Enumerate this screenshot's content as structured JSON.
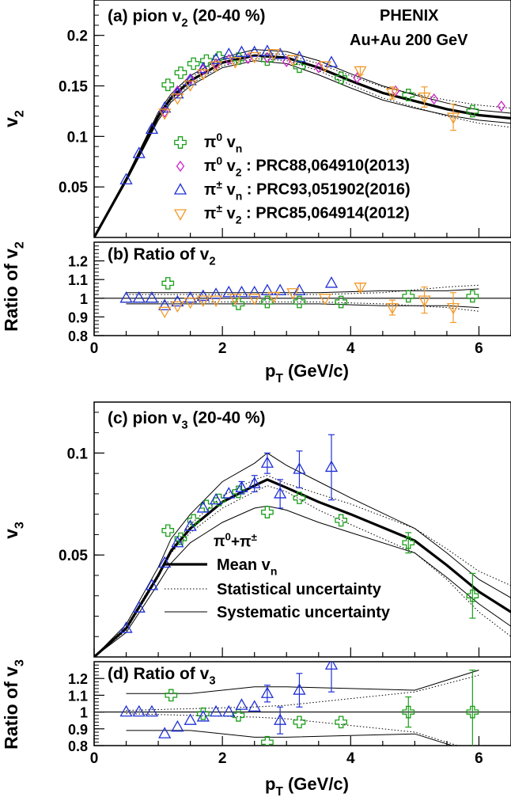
{
  "figure": {
    "experiment": "PHENIX",
    "system": "Au+Au 200 GeV"
  },
  "colors": {
    "pi0_vn": "#1a9f1a",
    "pi0_v2": "#cc22cc",
    "pich_vn": "#1f2fd6",
    "pich_v2": "#f39a2a",
    "lines": "#000000"
  },
  "icons": {
    "pi0_vn": "open-cross",
    "pi0_v2": "open-diamond",
    "pich_vn": "open-triangle-up",
    "pich_v2": "open-triangle-down"
  },
  "chart_data": [
    {
      "id": "a",
      "type": "scatter",
      "panel_label": "(a) pion v",
      "panel_label_sub": "2",
      "panel_label_tail": " (20-40 %)",
      "ylabel": "v",
      "ylabel_sub": "2",
      "xlim": [
        0,
        6.5
      ],
      "ylim": [
        0,
        0.235
      ],
      "yticks": [
        0.05,
        0.1,
        0.15,
        0.2
      ],
      "ytick_labels": [
        "0.05",
        "0.1",
        "0.15",
        "0.2"
      ],
      "legend": [
        {
          "key": "pi0_vn",
          "text": "π",
          "sup": "0",
          "mid": " v",
          "sub": "n",
          "tail": ""
        },
        {
          "key": "pi0_v2",
          "text": "π",
          "sup": "0",
          "mid": " v",
          "sub": "2",
          "tail": " : PRC88,064910(2013)"
        },
        {
          "key": "pich_vn",
          "text": "π",
          "sup": "±",
          "mid": " v",
          "sub": "n",
          "tail": " : PRC93,051902(2016)"
        },
        {
          "key": "pich_v2",
          "text": "π",
          "sup": "±",
          "mid": " v",
          "sub": "2",
          "tail": " : PRC85,064914(2012)"
        }
      ],
      "series": [
        {
          "name": "π0 vn",
          "key": "pi0_vn",
          "x": [
            1.15,
            1.35,
            1.55,
            1.75,
            1.95,
            2.25,
            2.7,
            3.2,
            3.85,
            4.9,
            5.9
          ],
          "y": [
            0.151,
            0.163,
            0.172,
            0.175,
            0.178,
            0.177,
            0.176,
            0.169,
            0.158,
            0.141,
            0.125
          ]
        },
        {
          "name": "π0 v2 : PRC88,064910(2013)",
          "key": "pi0_v2",
          "x": [
            1.1,
            1.3,
            1.5,
            1.7,
            1.9,
            2.1,
            2.4,
            2.7,
            3.0,
            3.5,
            4.1,
            4.7,
            5.3,
            6.35
          ],
          "y": [
            0.124,
            0.145,
            0.157,
            0.166,
            0.172,
            0.176,
            0.177,
            0.178,
            0.174,
            0.168,
            0.158,
            0.145,
            0.137,
            0.13
          ]
        },
        {
          "name": "π± vn : PRC93,051902(2016)",
          "key": "pich_vn",
          "x": [
            0.5,
            0.7,
            0.9,
            1.1,
            1.3,
            1.5,
            1.7,
            1.9,
            2.1,
            2.3,
            2.5,
            2.7,
            2.9,
            3.2,
            3.7
          ],
          "y": [
            0.057,
            0.083,
            0.107,
            0.128,
            0.142,
            0.155,
            0.167,
            0.176,
            0.181,
            0.183,
            0.183,
            0.184,
            0.181,
            0.178,
            0.173
          ]
        },
        {
          "name": "π± v2 : PRC85,064914(2012)",
          "key": "pich_v2",
          "x": [
            1.1,
            1.3,
            1.5,
            1.7,
            1.9,
            2.2,
            2.5,
            2.8,
            3.1,
            3.6,
            4.15,
            4.65,
            5.15,
            5.6
          ],
          "y": [
            0.123,
            0.138,
            0.151,
            0.162,
            0.17,
            0.174,
            0.179,
            0.182,
            0.176,
            0.17,
            0.165,
            0.143,
            0.139,
            0.119
          ],
          "yerr": [
            0,
            0,
            0,
            0,
            0,
            0,
            0,
            0,
            0,
            0,
            0.004,
            0.006,
            0.01,
            0.013
          ]
        }
      ],
      "lines": {
        "x": [
          0,
          0.5,
          1,
          1.2,
          1.5,
          2,
          2.5,
          3,
          3.5,
          4,
          4.5,
          5,
          5.5,
          6,
          6.5
        ],
        "mean": [
          0,
          0.057,
          0.12,
          0.138,
          0.155,
          0.173,
          0.18,
          0.178,
          0.168,
          0.155,
          0.143,
          0.135,
          0.127,
          0.121,
          0.118
        ],
        "stat_hi": [
          0,
          0.058,
          0.122,
          0.14,
          0.158,
          0.176,
          0.183,
          0.181,
          0.172,
          0.16,
          0.149,
          0.142,
          0.136,
          0.131,
          0.128
        ],
        "stat_lo": [
          0,
          0.056,
          0.118,
          0.136,
          0.152,
          0.17,
          0.177,
          0.175,
          0.165,
          0.151,
          0.138,
          0.129,
          0.12,
          0.113,
          0.109
        ],
        "sys_hi": [
          0,
          0.059,
          0.124,
          0.142,
          0.16,
          0.178,
          0.186,
          0.184,
          0.175,
          0.162,
          0.15,
          0.141,
          0.133,
          0.126,
          0.123
        ],
        "sys_lo": [
          0,
          0.055,
          0.116,
          0.134,
          0.15,
          0.168,
          0.175,
          0.172,
          0.161,
          0.148,
          0.136,
          0.128,
          0.121,
          0.116,
          0.113
        ]
      }
    },
    {
      "id": "b",
      "type": "scatter",
      "panel_label": "(b) Ratio of v",
      "panel_label_sub": "2",
      "ylabel": "Ratio of v",
      "ylabel_sub": "2",
      "xlim": [
        0,
        6.5
      ],
      "ylim": [
        0.8,
        1.3
      ],
      "yticks": [
        0.8,
        0.9,
        1.0,
        1.1,
        1.2
      ],
      "ytick_labels": [
        "0.8",
        "0.9",
        "1",
        "1.1",
        "1.2"
      ],
      "xlabel": "p",
      "xlabel_sub": "T",
      "xlabel_tail": " (GeV/c)",
      "xticks": [
        0,
        2,
        4,
        6
      ],
      "xtick_labels": [
        "0",
        "2",
        "4",
        "6"
      ],
      "series": [
        {
          "name": "π0 vn",
          "key": "pi0_vn",
          "x": [
            1.15,
            2.25,
            2.7,
            3.2,
            3.85,
            4.9,
            5.9
          ],
          "y": [
            1.08,
            0.97,
            0.98,
            0.98,
            0.98,
            1.01,
            1.01
          ]
        },
        {
          "name": "π± vn",
          "key": "pich_vn",
          "x": [
            0.5,
            0.7,
            0.9,
            1.1,
            1.3,
            1.5,
            1.7,
            1.9,
            2.1,
            2.3,
            2.5,
            2.7,
            2.9,
            3.2,
            3.7
          ],
          "y": [
            1.0,
            1.0,
            1.0,
            0.96,
            0.98,
            1.0,
            1.01,
            1.02,
            1.03,
            1.03,
            1.03,
            1.04,
            1.04,
            1.04,
            1.08
          ]
        },
        {
          "name": "π± v2",
          "key": "pich_v2",
          "x": [
            1.1,
            1.3,
            1.5,
            1.7,
            1.9,
            2.2,
            2.5,
            2.8,
            3.1,
            3.6,
            4.15,
            4.65,
            5.15,
            5.6
          ],
          "y": [
            0.93,
            0.96,
            0.98,
            0.99,
            0.99,
            1.0,
            1.0,
            1.01,
            1.03,
            1.0,
            1.06,
            0.95,
            0.99,
            0.95
          ],
          "yerr": [
            0,
            0,
            0,
            0,
            0,
            0,
            0,
            0,
            0,
            0,
            0.02,
            0.04,
            0.07,
            0.08
          ]
        }
      ],
      "lines": {
        "x": [
          0.5,
          1.5,
          2.5,
          3.5,
          4.5,
          5.5,
          6
        ],
        "stat_hi": [
          1.02,
          1.02,
          1.02,
          1.02,
          1.03,
          1.06,
          1.07
        ],
        "stat_lo": [
          0.98,
          0.98,
          0.98,
          0.98,
          0.97,
          0.95,
          0.93
        ],
        "sys_hi": [
          1.03,
          1.03,
          1.03,
          1.03,
          1.04,
          1.04,
          1.05
        ],
        "sys_lo": [
          0.97,
          0.97,
          0.97,
          0.97,
          0.96,
          0.96,
          0.95
        ]
      }
    },
    {
      "id": "c",
      "type": "scatter",
      "panel_label": "(c) pion v",
      "panel_label_sub": "3",
      "panel_label_tail": " (20-40 %)",
      "ylabel": "v",
      "ylabel_sub": "3",
      "xlim": [
        0,
        6.5
      ],
      "ylim": [
        0,
        0.125
      ],
      "yticks": [
        0.05,
        0.1
      ],
      "ytick_labels": [
        "0.05",
        "0.1"
      ],
      "legend_title": "π",
      "legend_title_sup": "0",
      "legend_title_mid": "+π",
      "legend_title_sup2": "±",
      "legend": [
        {
          "key": "mean",
          "text": "Mean v",
          "sub": "n"
        },
        {
          "key": "stat",
          "text": "Statistical uncertainty"
        },
        {
          "key": "sys",
          "text": "Systematic uncertainty"
        }
      ],
      "series": [
        {
          "name": "π0 vn",
          "key": "pi0_vn",
          "x": [
            1.15,
            1.35,
            1.55,
            1.75,
            1.95,
            2.25,
            2.7,
            3.2,
            3.85,
            4.9,
            5.9
          ],
          "y": [
            0.062,
            0.058,
            0.067,
            0.074,
            0.077,
            0.081,
            0.071,
            0.078,
            0.067,
            0.056,
            0.03
          ],
          "yerr": [
            0,
            0,
            0,
            0,
            0,
            0,
            0,
            0,
            0,
            0.005,
            0.011
          ]
        },
        {
          "name": "π± vn",
          "key": "pich_vn",
          "x": [
            0.5,
            0.7,
            0.9,
            1.1,
            1.3,
            1.5,
            1.7,
            1.9,
            2.1,
            2.3,
            2.5,
            2.7,
            2.9,
            3.2,
            3.7
          ],
          "y": [
            0.014,
            0.024,
            0.035,
            0.046,
            0.056,
            0.064,
            0.073,
            0.077,
            0.08,
            0.083,
            0.085,
            0.095,
            0.08,
            0.092,
            0.093
          ],
          "yerr": [
            0,
            0,
            0,
            0,
            0,
            0,
            0,
            0,
            0,
            0.003,
            0.004,
            0.005,
            0.007,
            0.009,
            0.016
          ]
        }
      ],
      "lines": {
        "x": [
          0,
          0.5,
          1,
          1.2,
          1.5,
          2,
          2.5,
          2.7,
          3,
          3.5,
          4,
          5,
          5.5,
          6,
          6.5
        ],
        "mean": [
          0,
          0.014,
          0.04,
          0.052,
          0.063,
          0.076,
          0.084,
          0.087,
          0.083,
          0.076,
          0.07,
          0.057,
          0.045,
          0.032,
          0.022
        ],
        "stat_hi": [
          0,
          0.015,
          0.041,
          0.053,
          0.065,
          0.079,
          0.087,
          0.089,
          0.085,
          0.08,
          0.075,
          0.063,
          0.053,
          0.042,
          0.035
        ],
        "stat_lo": [
          0,
          0.013,
          0.039,
          0.051,
          0.061,
          0.073,
          0.081,
          0.084,
          0.081,
          0.072,
          0.065,
          0.051,
          0.038,
          0.022,
          0.01
        ],
        "sys_hi": [
          0,
          0.016,
          0.044,
          0.058,
          0.07,
          0.086,
          0.095,
          0.1,
          0.094,
          0.086,
          0.078,
          0.063,
          0.051,
          0.038,
          0.029
        ],
        "sys_lo": [
          0,
          0.012,
          0.036,
          0.046,
          0.056,
          0.066,
          0.073,
          0.074,
          0.072,
          0.066,
          0.061,
          0.051,
          0.039,
          0.026,
          0.015
        ]
      }
    },
    {
      "id": "d",
      "type": "scatter",
      "panel_label": "(d) Ratio of v",
      "panel_label_sub": "3",
      "ylabel": "Ratio of v",
      "ylabel_sub": "3",
      "xlim": [
        0,
        6.5
      ],
      "ylim": [
        0.8,
        1.3
      ],
      "yticks": [
        0.8,
        0.9,
        1.0,
        1.1,
        1.2
      ],
      "ytick_labels": [
        "0.8",
        "0.9",
        "1",
        "1.1",
        "1.2"
      ],
      "xlabel": "p",
      "xlabel_sub": "T",
      "xlabel_tail": " (GeV/c)",
      "xticks": [
        0,
        2,
        4,
        6
      ],
      "xtick_labels": [
        "0",
        "2",
        "4",
        "6"
      ],
      "series": [
        {
          "name": "π0 vn",
          "key": "pi0_vn",
          "x": [
            1.2,
            1.7,
            2.25,
            2.7,
            3.2,
            3.85,
            4.9,
            5.9
          ],
          "y": [
            1.1,
            0.99,
            0.98,
            0.82,
            0.94,
            0.94,
            1.0,
            1.0
          ],
          "yerr": [
            0,
            0,
            0,
            0,
            0,
            0,
            0.09,
            0.25
          ]
        },
        {
          "name": "π± vn",
          "key": "pich_vn",
          "x": [
            0.5,
            0.7,
            0.9,
            1.1,
            1.3,
            1.5,
            1.7,
            1.9,
            2.1,
            2.3,
            2.5,
            2.7,
            2.9,
            3.2,
            3.7
          ],
          "y": [
            1.0,
            1.0,
            1.0,
            0.87,
            0.91,
            0.95,
            0.97,
            1.0,
            1.0,
            1.04,
            1.03,
            1.11,
            0.95,
            1.13,
            1.28
          ],
          "yerr": [
            0,
            0,
            0,
            0,
            0,
            0,
            0,
            0,
            0,
            0,
            0,
            0.05,
            0.08,
            0.1,
            0.16
          ]
        }
      ],
      "lines": {
        "x": [
          0.5,
          1.5,
          2.5,
          3,
          4,
          5,
          6
        ],
        "stat_hi": [
          1.01,
          1.02,
          1.03,
          1.04,
          1.08,
          1.12,
          1.22
        ],
        "stat_lo": [
          0.99,
          0.98,
          0.97,
          0.96,
          0.92,
          0.88,
          0.76
        ],
        "sys_hi": [
          1.11,
          1.11,
          1.15,
          1.15,
          1.14,
          1.13,
          1.25
        ],
        "sys_lo": [
          0.89,
          0.89,
          0.85,
          0.85,
          0.86,
          0.87,
          0.75
        ]
      }
    }
  ]
}
